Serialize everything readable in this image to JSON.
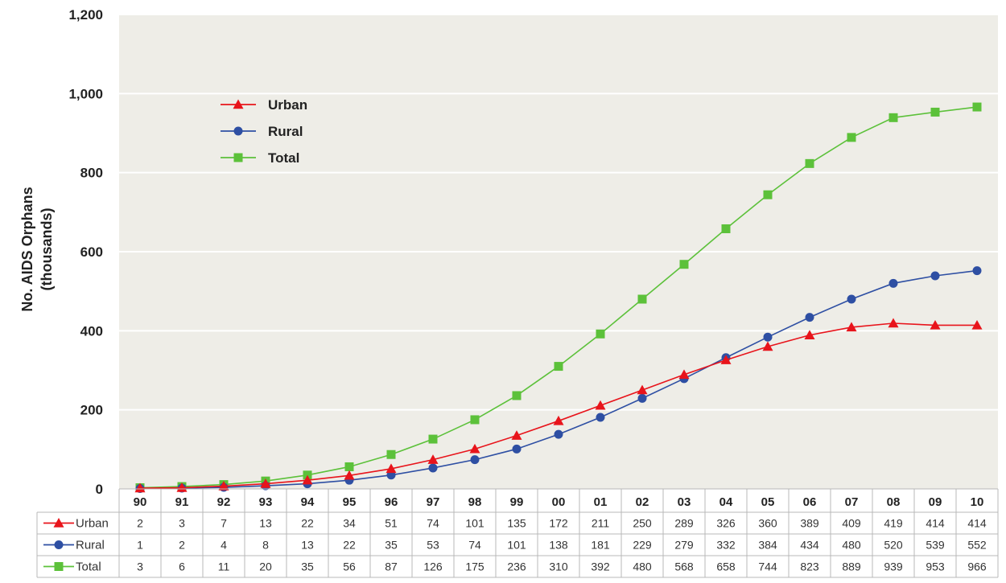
{
  "chart_data": {
    "type": "line",
    "ylabel_line1": "No. AIDS Orphans",
    "ylabel_line2": "(thousands)",
    "ylim": [
      0,
      1200
    ],
    "yticks": [
      0,
      200,
      400,
      600,
      800,
      1000,
      1200
    ],
    "ytick_labels": [
      "0",
      "200",
      "400",
      "600",
      "800",
      "1,000",
      "1,200"
    ],
    "categories": [
      "90",
      "91",
      "92",
      "93",
      "94",
      "95",
      "96",
      "97",
      "98",
      "99",
      "00",
      "01",
      "02",
      "03",
      "04",
      "05",
      "06",
      "07",
      "08",
      "09",
      "10"
    ],
    "legend_position": "upper-left",
    "grid": true,
    "series": [
      {
        "name": "Urban",
        "color": "#e8141b",
        "marker": "triangle",
        "values": [
          2,
          3,
          7,
          13,
          22,
          34,
          51,
          74,
          101,
          135,
          172,
          211,
          250,
          289,
          326,
          360,
          389,
          409,
          419,
          414,
          414
        ]
      },
      {
        "name": "Rural",
        "color": "#2e4fa3",
        "marker": "circle",
        "values": [
          1,
          2,
          4,
          8,
          13,
          22,
          35,
          53,
          74,
          101,
          138,
          181,
          229,
          279,
          332,
          384,
          434,
          480,
          520,
          539,
          552
        ]
      },
      {
        "name": "Total",
        "color": "#5cc13a",
        "marker": "square",
        "values": [
          3,
          6,
          11,
          20,
          35,
          56,
          87,
          126,
          175,
          236,
          310,
          392,
          480,
          568,
          658,
          744,
          823,
          889,
          939,
          953,
          966
        ]
      }
    ]
  }
}
